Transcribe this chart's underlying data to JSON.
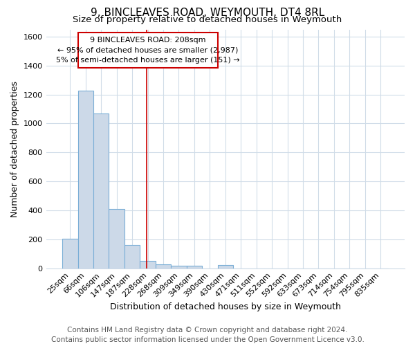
{
  "title1": "9, BINCLEAVES ROAD, WEYMOUTH, DT4 8RL",
  "title2": "Size of property relative to detached houses in Weymouth",
  "xlabel": "Distribution of detached houses by size in Weymouth",
  "ylabel": "Number of detached properties",
  "categories": [
    "25sqm",
    "66sqm",
    "106sqm",
    "147sqm",
    "187sqm",
    "228sqm",
    "268sqm",
    "309sqm",
    "349sqm",
    "390sqm",
    "430sqm",
    "471sqm",
    "511sqm",
    "552sqm",
    "592sqm",
    "633sqm",
    "673sqm",
    "714sqm",
    "754sqm",
    "795sqm",
    "835sqm"
  ],
  "values": [
    205,
    1225,
    1070,
    410,
    162,
    50,
    27,
    18,
    18,
    0,
    20,
    0,
    0,
    0,
    0,
    0,
    0,
    0,
    0,
    0,
    0
  ],
  "bar_color": "#ccd9e8",
  "bar_edge_color": "#7aaed6",
  "bg_color": "#ffffff",
  "grid_color": "#d0dce8",
  "ylim": [
    0,
    1650
  ],
  "yticks": [
    0,
    200,
    400,
    600,
    800,
    1000,
    1200,
    1400,
    1600
  ],
  "vline_x": 4.95,
  "vline_color": "#cc0000",
  "annotation_line1": "9 BINCLEAVES ROAD: 208sqm",
  "annotation_line2": "← 95% of detached houses are smaller (2,987)",
  "annotation_line3": "5% of semi-detached houses are larger (151) →",
  "annotation_box_color": "#cc0000",
  "footer1": "Contains HM Land Registry data © Crown copyright and database right 2024.",
  "footer2": "Contains public sector information licensed under the Open Government Licence v3.0.",
  "title1_fontsize": 11,
  "title2_fontsize": 9.5,
  "xlabel_fontsize": 9,
  "ylabel_fontsize": 9,
  "tick_fontsize": 8,
  "footer_fontsize": 7.5
}
